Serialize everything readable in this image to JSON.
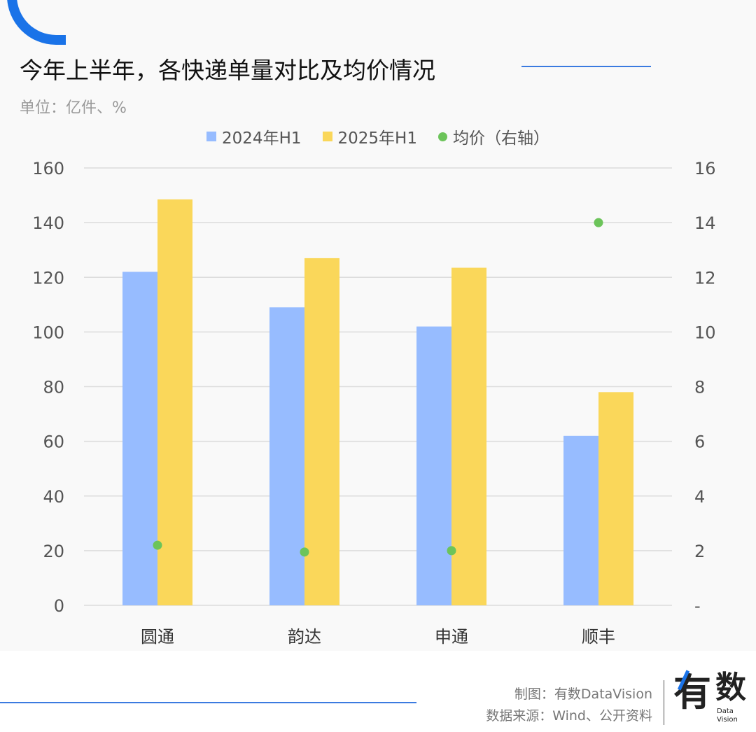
{
  "title": "今年上半年，各快递单量对比及均价情况",
  "unit": "单位：亿件、%",
  "footer": {
    "credit": "制图：有数DataVision",
    "source": "数据来源：Wind、公开资料",
    "logo_text": "有数 Data Vision"
  },
  "colors": {
    "accent": "#1a73e8",
    "s2024": "#97bcff",
    "s2025": "#fad75a",
    "price": "#6cc45a"
  },
  "chart_data": {
    "type": "bar",
    "categories": [
      "圆通",
      "韵达",
      "申通",
      "顺丰"
    ],
    "series": [
      {
        "name": "2024年H1",
        "values": [
          122,
          109,
          102,
          62
        ],
        "axis": "left"
      },
      {
        "name": "2025年H1",
        "values": [
          148.5,
          127,
          123.5,
          78
        ],
        "axis": "left"
      },
      {
        "name": "均价（右轴）",
        "type": "scatter",
        "values": [
          2.2,
          1.95,
          2.0,
          14.0
        ],
        "axis": "right"
      }
    ],
    "ylim": [
      0,
      160
    ],
    "y_ticks": [
      "0",
      "20",
      "40",
      "60",
      "80",
      "100",
      "120",
      "140",
      "160"
    ],
    "y2lim": [
      0,
      16
    ],
    "y2_ticks": [
      "-",
      "2",
      "4",
      "6",
      "8",
      "10",
      "12",
      "14",
      "16"
    ],
    "grid": true,
    "legend": "top"
  }
}
